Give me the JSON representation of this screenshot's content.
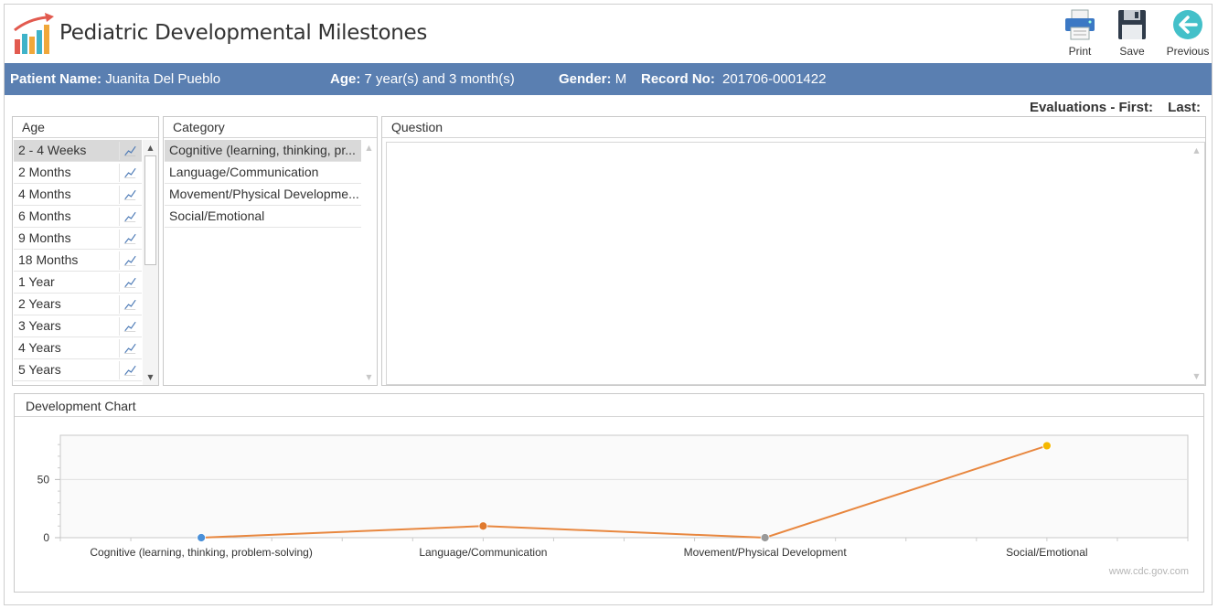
{
  "app": {
    "title": "Pediatric Developmental Milestones"
  },
  "toolbar": {
    "print_label": "Print",
    "save_label": "Save",
    "previous_label": "Previous"
  },
  "patient": {
    "name_label": "Patient Name:",
    "name": "Juanita Del Pueblo",
    "age_label": "Age:",
    "age": "7 year(s) and 3 month(s)",
    "gender_label": "Gender:",
    "gender": "M",
    "record_label": "Record No:",
    "record": "201706-0001422"
  },
  "evaluations": {
    "label": "Evaluations - First:",
    "last_label": "Last:"
  },
  "age_panel": {
    "header": "Age",
    "items": [
      {
        "label": "2 - 4 Weeks",
        "selected": true
      },
      {
        "label": "2 Months"
      },
      {
        "label": "4 Months"
      },
      {
        "label": "6 Months"
      },
      {
        "label": "9 Months"
      },
      {
        "label": "18 Months"
      },
      {
        "label": "1 Year"
      },
      {
        "label": "2 Years"
      },
      {
        "label": "3 Years"
      },
      {
        "label": "4 Years"
      },
      {
        "label": "5 Years"
      }
    ]
  },
  "category_panel": {
    "header": "Category",
    "items": [
      {
        "label": "Cognitive (learning, thinking, pr...",
        "selected": true
      },
      {
        "label": "Language/Communication"
      },
      {
        "label": "Movement/Physical Developme..."
      },
      {
        "label": "Social/Emotional"
      }
    ]
  },
  "question_panel": {
    "header": "Question"
  },
  "chart_panel": {
    "header": "Development Chart",
    "watermark": "www.cdc.gov.com"
  },
  "chart_data": {
    "type": "line",
    "title": "",
    "categories": [
      "Cognitive (learning, thinking, problem-solving)",
      "Language/Communication",
      "Movement/Physical Development",
      "Social/Emotional"
    ],
    "values": [
      0,
      10,
      0,
      79
    ],
    "point_colors": [
      "#4a90d9",
      "#e07a2e",
      "#999999",
      "#f5b800"
    ],
    "line_color": "#e8873f",
    "ylim": [
      0,
      88
    ],
    "yticks": [
      0,
      50
    ],
    "grid": true,
    "xlabel": "",
    "ylabel": ""
  }
}
